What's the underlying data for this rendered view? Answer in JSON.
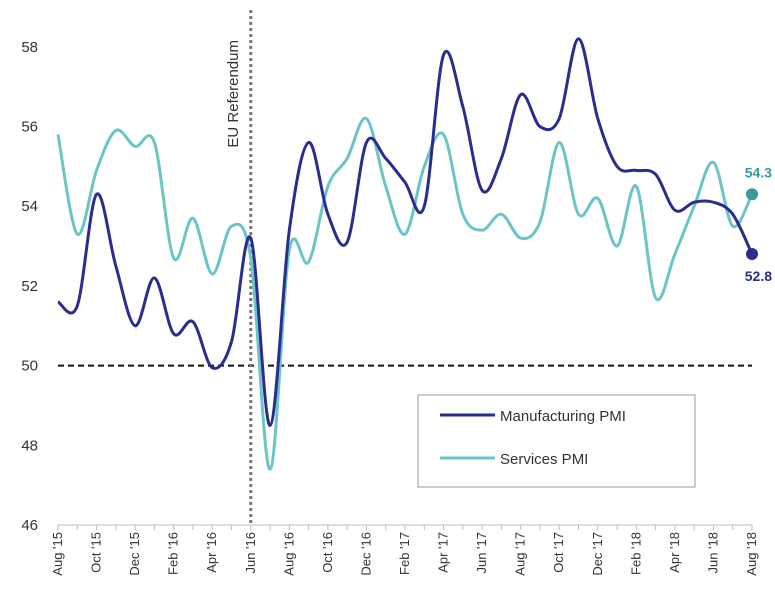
{
  "chart_data": {
    "type": "line",
    "categories": [
      "Aug '15",
      null,
      "Oct '15",
      null,
      "Dec '15",
      null,
      "Feb '16",
      null,
      "Apr '16",
      null,
      "Jun '16",
      null,
      "Aug '16",
      null,
      "Oct '16",
      null,
      "Dec '16",
      null,
      "Feb '17",
      null,
      "Apr '17",
      null,
      "Jun '17",
      null,
      "Aug '17",
      null,
      "Oct '17",
      null,
      "Dec '17",
      null,
      "Feb '18",
      null,
      "Apr '18",
      null,
      "Jun '18",
      null,
      "Aug '18"
    ],
    "series": [
      {
        "name": "Manufacturing PMI",
        "color": "#2b2d8e",
        "label_color": "#2b2d8e",
        "values": [
          51.6,
          51.5,
          54.3,
          52.5,
          51.0,
          52.2,
          50.8,
          51.1,
          49.95,
          50.6,
          53.2,
          48.5,
          53.4,
          55.6,
          53.8,
          53.1,
          55.6,
          55.2,
          54.6,
          54.0,
          57.8,
          56.5,
          54.4,
          55.2,
          56.8,
          56.0,
          56.2,
          58.2,
          56.2,
          55.0,
          54.9,
          54.8,
          53.9,
          54.1,
          54.1,
          53.8,
          52.8
        ]
      },
      {
        "name": "Services PMI",
        "color": "#6cc5c5",
        "label_color": "#3a9a9a",
        "values": [
          55.8,
          53.3,
          54.9,
          55.9,
          55.5,
          55.6,
          52.7,
          53.7,
          52.3,
          53.5,
          52.7,
          47.4,
          52.9,
          52.6,
          54.5,
          55.2,
          56.2,
          54.5,
          53.3,
          55.0,
          55.8,
          53.8,
          53.4,
          53.8,
          53.2,
          53.6,
          55.6,
          53.8,
          54.2,
          53.0,
          54.5,
          51.7,
          52.8,
          54.0,
          55.1,
          53.5,
          54.3
        ]
      }
    ],
    "ylim": [
      46,
      59
    ],
    "yticks": [
      46,
      48,
      50,
      52,
      54,
      56,
      58
    ],
    "reference_line": 50,
    "annotation": {
      "text": "EU Referendum",
      "x": "Jun '16"
    },
    "legend": "lower right"
  }
}
